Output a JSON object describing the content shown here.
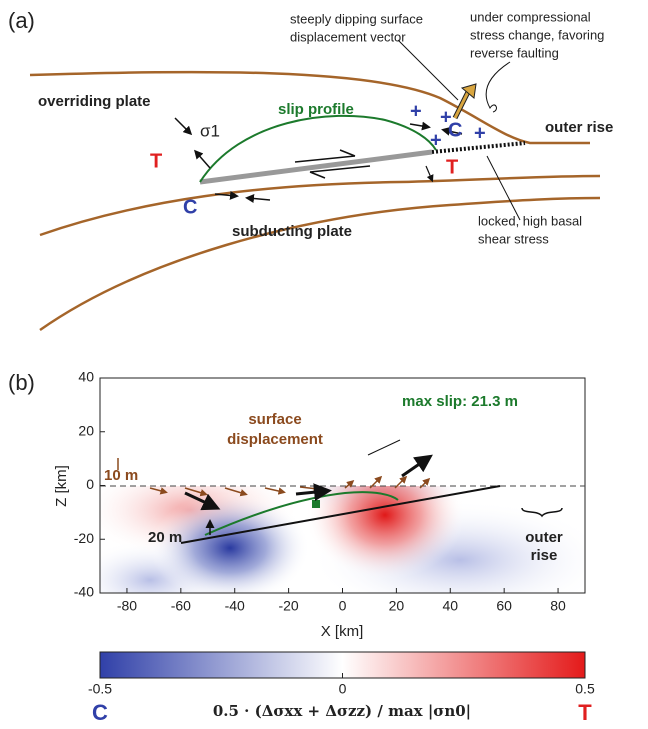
{
  "panel_a": {
    "label": "(a)",
    "vector_note": [
      "steeply dipping surface",
      "displacement vector"
    ],
    "compression_note": [
      "under compressional",
      "stress change, favoring",
      "reverse faulting"
    ],
    "overriding_plate": "overriding plate",
    "slip_profile": "slip profile",
    "sigma": "σ1",
    "tension": "T",
    "compression": "C",
    "plus": "+",
    "outer_rise": "outer rise",
    "locked_note": [
      "locked, high basal",
      "shear stress"
    ],
    "subducting_plate": "subducting plate"
  },
  "panel_b": {
    "label": "(b)",
    "max_slip": "max slip: 21.3 m",
    "surface_displacement": [
      "surface",
      "displacement"
    ],
    "scale_surface": "10 m",
    "scale_slip": "20 m",
    "outer_rise": [
      "outer",
      "rise"
    ],
    "xlabel": "X [km]",
    "ylabel": "Z [km]",
    "xlim": [
      -90,
      90
    ],
    "ylim": [
      -40,
      40
    ],
    "xticks": [
      -80,
      -60,
      -40,
      -20,
      0,
      20,
      40,
      60,
      80
    ],
    "yticks": [
      -40,
      -20,
      0,
      20,
      40
    ],
    "colorbar": {
      "lim": [
        -0.5,
        0.5
      ],
      "ticks": [
        -0.5,
        0,
        0.5
      ],
      "label": "0.5 · (Δσxx + Δσzz) / max |σn0|",
      "low": "C",
      "high": "T"
    }
  }
}
